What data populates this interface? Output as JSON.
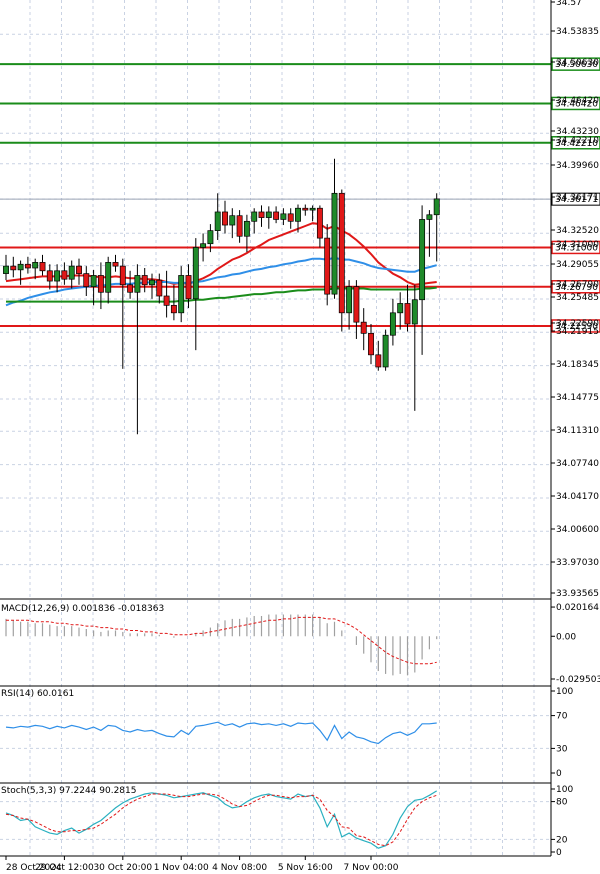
{
  "chart_data": {
    "type": "candlestick",
    "price_axis": {
      "ticks": [
        "34.57",
        "34.53835",
        "34.50630",
        "34.46420",
        "34.43230",
        "34.42210",
        "34.39960",
        "34.36171",
        "34.32520",
        "34.31000",
        "34.29055",
        "34.26790",
        "34.25485",
        "34.22590",
        "34.21915",
        "34.18345",
        "34.14775",
        "34.11310",
        "34.07740",
        "34.04170",
        "34.00600",
        "33.97030",
        "33.93565"
      ],
      "ylim": [
        33.93565,
        34.575
      ]
    },
    "levels": [
      {
        "value": 34.5063,
        "label": "34.50630",
        "color": "#1a8c1a"
      },
      {
        "value": 34.4642,
        "label": "34.46420",
        "color": "#1a8c1a"
      },
      {
        "value": 34.4221,
        "label": "34.42210",
        "color": "#1a8c1a"
      },
      {
        "value": 34.31,
        "label": "34.31000",
        "color": "#e01818"
      },
      {
        "value": 34.2679,
        "label": "34.26790",
        "color": "#e01818"
      },
      {
        "value": 34.2259,
        "label": "34.22590",
        "color": "#e01818"
      }
    ],
    "current_price": {
      "value": 34.36171,
      "label": "34.36171"
    },
    "candles": [
      [
        34.282,
        34.302,
        34.275,
        34.29
      ],
      [
        34.29,
        34.3,
        34.278,
        34.286
      ],
      [
        34.286,
        34.296,
        34.27,
        34.292
      ],
      [
        34.292,
        34.3,
        34.282,
        34.288
      ],
      [
        34.288,
        34.298,
        34.276,
        34.294
      ],
      [
        34.294,
        34.302,
        34.28,
        34.285
      ],
      [
        34.285,
        34.292,
        34.265,
        34.274
      ],
      [
        34.274,
        34.292,
        34.262,
        34.285
      ],
      [
        34.285,
        34.294,
        34.27,
        34.276
      ],
      [
        34.276,
        34.296,
        34.266,
        34.29
      ],
      [
        34.29,
        34.298,
        34.27,
        34.282
      ],
      [
        34.282,
        34.29,
        34.258,
        34.268
      ],
      [
        34.268,
        34.286,
        34.248,
        34.28
      ],
      [
        34.28,
        34.294,
        34.244,
        34.262
      ],
      [
        34.262,
        34.3,
        34.25,
        34.294
      ],
      [
        34.294,
        34.302,
        34.284,
        34.29
      ],
      [
        34.29,
        34.298,
        34.18,
        34.27
      ],
      [
        34.27,
        34.285,
        34.255,
        34.262
      ],
      [
        34.262,
        34.292,
        34.11,
        34.28
      ],
      [
        34.28,
        34.288,
        34.262,
        34.27
      ],
      [
        34.27,
        34.282,
        34.255,
        34.275
      ],
      [
        34.275,
        34.282,
        34.25,
        34.258
      ],
      [
        34.258,
        34.285,
        34.235,
        34.248
      ],
      [
        34.248,
        34.27,
        34.232,
        34.24
      ],
      [
        34.24,
        34.29,
        34.23,
        34.28
      ],
      [
        34.28,
        34.292,
        34.245,
        34.255
      ],
      [
        34.255,
        34.32,
        34.2,
        34.31
      ],
      [
        34.31,
        34.325,
        34.295,
        34.314
      ],
      [
        34.314,
        34.335,
        34.305,
        34.328
      ],
      [
        34.328,
        34.368,
        34.318,
        34.348
      ],
      [
        34.348,
        34.36,
        34.325,
        34.334
      ],
      [
        34.334,
        34.352,
        34.32,
        34.344
      ],
      [
        34.344,
        34.35,
        34.315,
        34.322
      ],
      [
        34.322,
        34.345,
        34.305,
        34.338
      ],
      [
        34.338,
        34.352,
        34.325,
        34.348
      ],
      [
        34.348,
        34.355,
        34.332,
        34.342
      ],
      [
        34.342,
        34.354,
        34.33,
        34.348
      ],
      [
        34.348,
        34.354,
        34.336,
        34.34
      ],
      [
        34.34,
        34.352,
        34.334,
        34.346
      ],
      [
        34.346,
        34.352,
        34.33,
        34.338
      ],
      [
        34.338,
        34.356,
        34.326,
        34.352
      ],
      [
        34.352,
        34.356,
        34.344,
        34.35
      ],
      [
        34.35,
        34.355,
        34.338,
        34.352
      ],
      [
        34.352,
        34.355,
        34.31,
        34.32
      ],
      [
        34.32,
        34.335,
        34.248,
        34.26
      ],
      [
        34.26,
        34.405,
        34.255,
        34.368
      ],
      [
        34.368,
        34.372,
        34.22,
        34.24
      ],
      [
        34.24,
        34.275,
        34.222,
        34.268
      ],
      [
        34.268,
        34.275,
        34.212,
        34.23
      ],
      [
        34.23,
        34.245,
        34.2,
        34.218
      ],
      [
        34.218,
        34.228,
        34.185,
        34.195
      ],
      [
        34.195,
        34.21,
        34.178,
        34.182
      ],
      [
        34.182,
        34.222,
        34.178,
        34.216
      ],
      [
        34.216,
        34.255,
        34.205,
        34.24
      ],
      [
        34.24,
        34.262,
        34.222,
        34.25
      ],
      [
        34.25,
        34.27,
        34.22,
        34.228
      ],
      [
        34.228,
        34.27,
        34.135,
        34.254
      ],
      [
        34.254,
        34.355,
        34.195,
        34.34
      ],
      [
        34.34,
        34.35,
        34.3,
        34.345
      ],
      [
        34.345,
        34.368,
        34.295,
        34.362
      ]
    ],
    "moving_averages": [
      {
        "color": "#e01818",
        "values": [
          34.274,
          34.275,
          34.276,
          34.277,
          34.278,
          34.279,
          34.279,
          34.279,
          34.279,
          34.28,
          34.28,
          34.28,
          34.279,
          34.278,
          34.278,
          34.279,
          34.278,
          34.277,
          34.277,
          34.276,
          34.276,
          34.275,
          34.273,
          34.271,
          34.272,
          34.271,
          34.274,
          34.277,
          34.281,
          34.287,
          34.292,
          34.297,
          34.3,
          34.304,
          34.309,
          34.313,
          34.318,
          34.321,
          34.324,
          34.327,
          34.33,
          34.333,
          34.336,
          34.335,
          34.33,
          34.333,
          34.328,
          34.324,
          34.318,
          34.311,
          34.303,
          34.294,
          34.288,
          34.282,
          34.278,
          34.273,
          34.27,
          34.271,
          34.272,
          34.273
        ]
      },
      {
        "color": "#2f8fe8",
        "values": [
          34.248,
          34.251,
          34.253,
          34.256,
          34.258,
          34.26,
          34.262,
          34.263,
          34.265,
          34.266,
          34.267,
          34.268,
          34.269,
          34.269,
          34.27,
          34.271,
          34.271,
          34.271,
          34.272,
          34.272,
          34.273,
          34.273,
          34.273,
          34.272,
          34.272,
          34.272,
          34.273,
          34.274,
          34.276,
          34.278,
          34.279,
          34.281,
          34.282,
          34.284,
          34.286,
          34.287,
          34.289,
          34.29,
          34.292,
          34.293,
          34.295,
          34.296,
          34.298,
          34.298,
          34.297,
          34.299,
          34.297,
          34.297,
          34.295,
          34.293,
          34.29,
          34.288,
          34.287,
          34.286,
          34.285,
          34.284,
          34.284,
          34.287,
          34.289,
          34.291
        ]
      },
      {
        "color": "#1a8c1a",
        "values": [
          34.252,
          34.252,
          34.252,
          34.252,
          34.252,
          34.252,
          34.252,
          34.252,
          34.252,
          34.252,
          34.252,
          34.252,
          34.252,
          34.252,
          34.252,
          34.252,
          34.252,
          34.252,
          34.252,
          34.252,
          34.252,
          34.252,
          34.252,
          34.252,
          34.253,
          34.253,
          34.254,
          34.254,
          34.255,
          34.256,
          34.256,
          34.257,
          34.258,
          34.259,
          34.26,
          34.26,
          34.261,
          34.262,
          34.262,
          34.263,
          34.264,
          34.264,
          34.265,
          34.265,
          34.265,
          34.266,
          34.266,
          34.266,
          34.266,
          34.266,
          34.265,
          34.265,
          34.265,
          34.265,
          34.265,
          34.265,
          34.265,
          34.266,
          34.266,
          34.267
        ]
      }
    ],
    "x_axis": {
      "tick_labels": [
        {
          "index": 0,
          "label": "28 Oct 2024"
        },
        {
          "index": 8,
          "label": "29 Oct 12:00"
        },
        {
          "index": 16,
          "label": "30 Oct 20:00"
        },
        {
          "index": 24,
          "label": "1 Nov 04:00"
        },
        {
          "index": 32,
          "label": "4 Nov 08:00"
        },
        {
          "index": 41,
          "label": "5 Nov 16:00"
        },
        {
          "index": 50,
          "label": "7 Nov 00:00"
        }
      ]
    },
    "macd": {
      "title": "MACD(12,26,9) 0.001836 -0.018363",
      "ticks": [
        "0.020164",
        "0.00",
        "-0.029503"
      ],
      "ylim": [
        -0.0295,
        0.0202
      ],
      "histogram": [
        0.012,
        0.011,
        0.01,
        0.01,
        0.009,
        0.009,
        0.008,
        0.007,
        0.007,
        0.007,
        0.006,
        0.005,
        0.004,
        0.003,
        0.004,
        0.004,
        0.003,
        0.002,
        0.002,
        0.002,
        0.002,
        0.001,
        0.0,
        -0.001,
        0.0,
        0.0,
        0.002,
        0.004,
        0.006,
        0.009,
        0.011,
        0.012,
        0.012,
        0.013,
        0.014,
        0.014,
        0.015,
        0.015,
        0.015,
        0.015,
        0.015,
        0.015,
        0.015,
        0.013,
        0.009,
        0.01,
        0.004,
        0.0,
        -0.006,
        -0.012,
        -0.018,
        -0.024,
        -0.026,
        -0.027,
        -0.026,
        -0.027,
        -0.025,
        -0.016,
        -0.009,
        -0.002
      ],
      "signal": [
        0.011,
        0.011,
        0.011,
        0.011,
        0.01,
        0.01,
        0.01,
        0.009,
        0.009,
        0.008,
        0.008,
        0.007,
        0.007,
        0.006,
        0.006,
        0.005,
        0.005,
        0.004,
        0.004,
        0.003,
        0.003,
        0.002,
        0.002,
        0.001,
        0.001,
        0.001,
        0.002,
        0.002,
        0.003,
        0.004,
        0.005,
        0.006,
        0.007,
        0.008,
        0.009,
        0.01,
        0.011,
        0.011,
        0.012,
        0.012,
        0.013,
        0.013,
        0.013,
        0.013,
        0.012,
        0.012,
        0.01,
        0.008,
        0.005,
        0.001,
        -0.003,
        -0.007,
        -0.011,
        -0.014,
        -0.016,
        -0.018,
        -0.019,
        -0.019,
        -0.019,
        -0.018
      ]
    },
    "rsi": {
      "title": "RSI(14) 60.0161",
      "ticks": [
        "100",
        "70",
        "30",
        "0"
      ],
      "ylim": [
        0,
        100
      ],
      "values": [
        56,
        55,
        57,
        56,
        58,
        57,
        54,
        57,
        55,
        58,
        56,
        53,
        56,
        52,
        58,
        57,
        52,
        50,
        53,
        51,
        52,
        48,
        45,
        44,
        52,
        47,
        57,
        58,
        60,
        62,
        58,
        60,
        56,
        60,
        61,
        59,
        60,
        58,
        60,
        57,
        61,
        60,
        61,
        52,
        40,
        58,
        42,
        50,
        44,
        42,
        38,
        36,
        43,
        48,
        50,
        46,
        50,
        60,
        60,
        61
      ]
    },
    "stoch": {
      "title": "Stoch(5,3,3) 97.2244 90.2815",
      "ticks": [
        "100",
        "80",
        "20",
        "0"
      ],
      "ylim": [
        0,
        100
      ],
      "k": [
        62,
        58,
        50,
        52,
        40,
        35,
        30,
        28,
        34,
        38,
        30,
        36,
        44,
        50,
        60,
        70,
        78,
        84,
        88,
        92,
        94,
        92,
        90,
        86,
        88,
        90,
        92,
        94,
        90,
        86,
        76,
        70,
        72,
        80,
        86,
        90,
        92,
        88,
        86,
        84,
        92,
        88,
        90,
        70,
        40,
        60,
        24,
        30,
        22,
        18,
        14,
        6,
        10,
        28,
        54,
        72,
        82,
        84,
        90,
        97
      ],
      "d": [
        60,
        58,
        54,
        52,
        48,
        42,
        36,
        32,
        32,
        34,
        34,
        36,
        38,
        44,
        52,
        60,
        70,
        78,
        84,
        88,
        92,
        92,
        92,
        90,
        88,
        88,
        90,
        92,
        92,
        90,
        84,
        76,
        72,
        74,
        80,
        86,
        90,
        90,
        88,
        86,
        88,
        88,
        90,
        84,
        66,
        56,
        40,
        38,
        26,
        24,
        18,
        12,
        10,
        16,
        32,
        52,
        70,
        80,
        86,
        90
      ]
    }
  }
}
